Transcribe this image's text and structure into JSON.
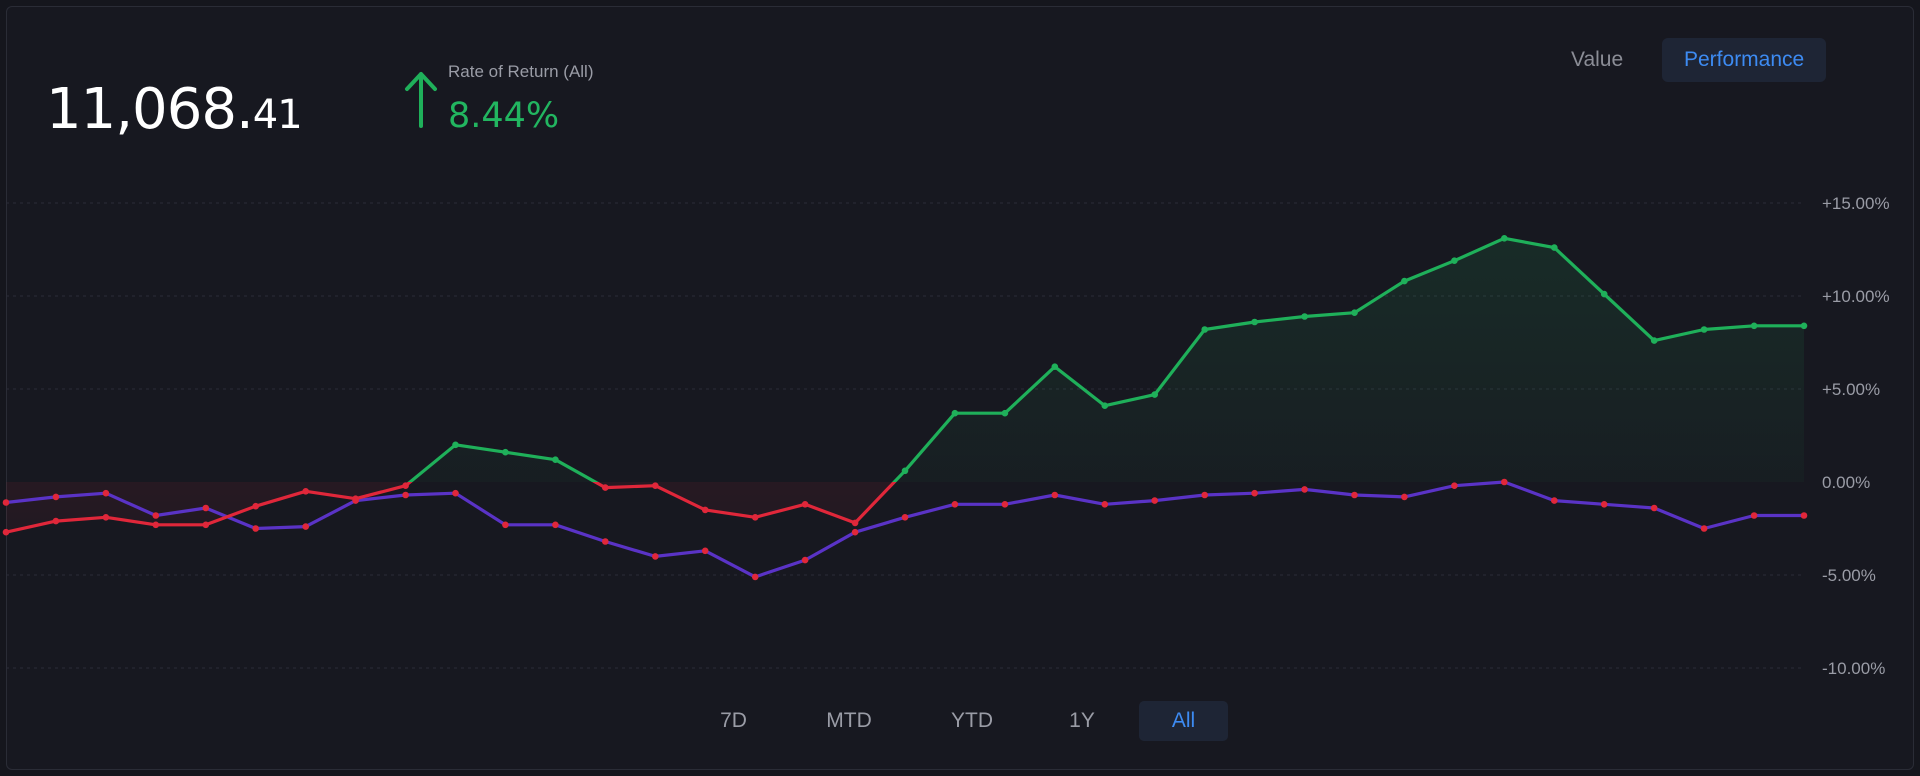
{
  "balance": {
    "integer": "11,068.",
    "decimal": "41"
  },
  "rate_of_return": {
    "label": "Rate of Return (All)",
    "value": "8.44%",
    "direction": "up",
    "icon": "arrow-up-icon"
  },
  "view_toggle": {
    "value_label": "Value",
    "performance_label": "Performance",
    "active": "Performance"
  },
  "ranges": [
    {
      "label": "7D",
      "active": false
    },
    {
      "label": "MTD",
      "active": false
    },
    {
      "label": "YTD",
      "active": false
    },
    {
      "label": "1Y",
      "active": false
    },
    {
      "label": "All",
      "active": true
    }
  ],
  "colors": {
    "positive": "#1fb05a",
    "negative": "#e0273a",
    "benchmark": "#5a33c6",
    "accent": "#3d8bf2",
    "background": "#171820"
  },
  "chart_data": {
    "type": "line",
    "y_ticks": [
      "+15.00%",
      "+10.00%",
      "+5.00%",
      "0.00%",
      "-5.00%",
      "-10.00%"
    ],
    "ylim": [
      -10,
      15
    ],
    "grid": true,
    "legend": "none",
    "series": [
      {
        "values": [
          -2.7,
          -2.1,
          -1.9,
          -2.3,
          -2.3,
          -1.3,
          -0.5,
          -0.9,
          -0.2,
          2.0,
          1.6,
          1.2,
          -0.3,
          -0.2,
          -1.5,
          -1.9,
          -1.2,
          -2.2,
          0.6,
          3.7,
          3.7,
          6.2,
          4.1,
          4.7,
          8.2,
          8.6,
          8.9,
          9.1,
          10.8,
          11.9,
          13.1,
          12.6,
          10.1,
          7.6,
          8.2,
          8.4,
          8.4
        ]
      },
      {
        "values": [
          -1.1,
          -0.8,
          -0.6,
          -1.8,
          -1.4,
          -2.5,
          -2.4,
          -1.0,
          -0.7,
          -0.6,
          -2.3,
          -2.3,
          -3.2,
          -4.0,
          -3.7,
          -5.1,
          -4.2,
          -2.7,
          -1.9,
          -1.2,
          -1.2,
          -0.7,
          -1.2,
          -1.0,
          -0.7,
          -0.6,
          -0.4,
          -0.7,
          -0.8,
          -0.2,
          0.0,
          -1.0,
          -1.2,
          -1.4,
          -2.5,
          -1.8,
          -1.8
        ]
      }
    ]
  }
}
